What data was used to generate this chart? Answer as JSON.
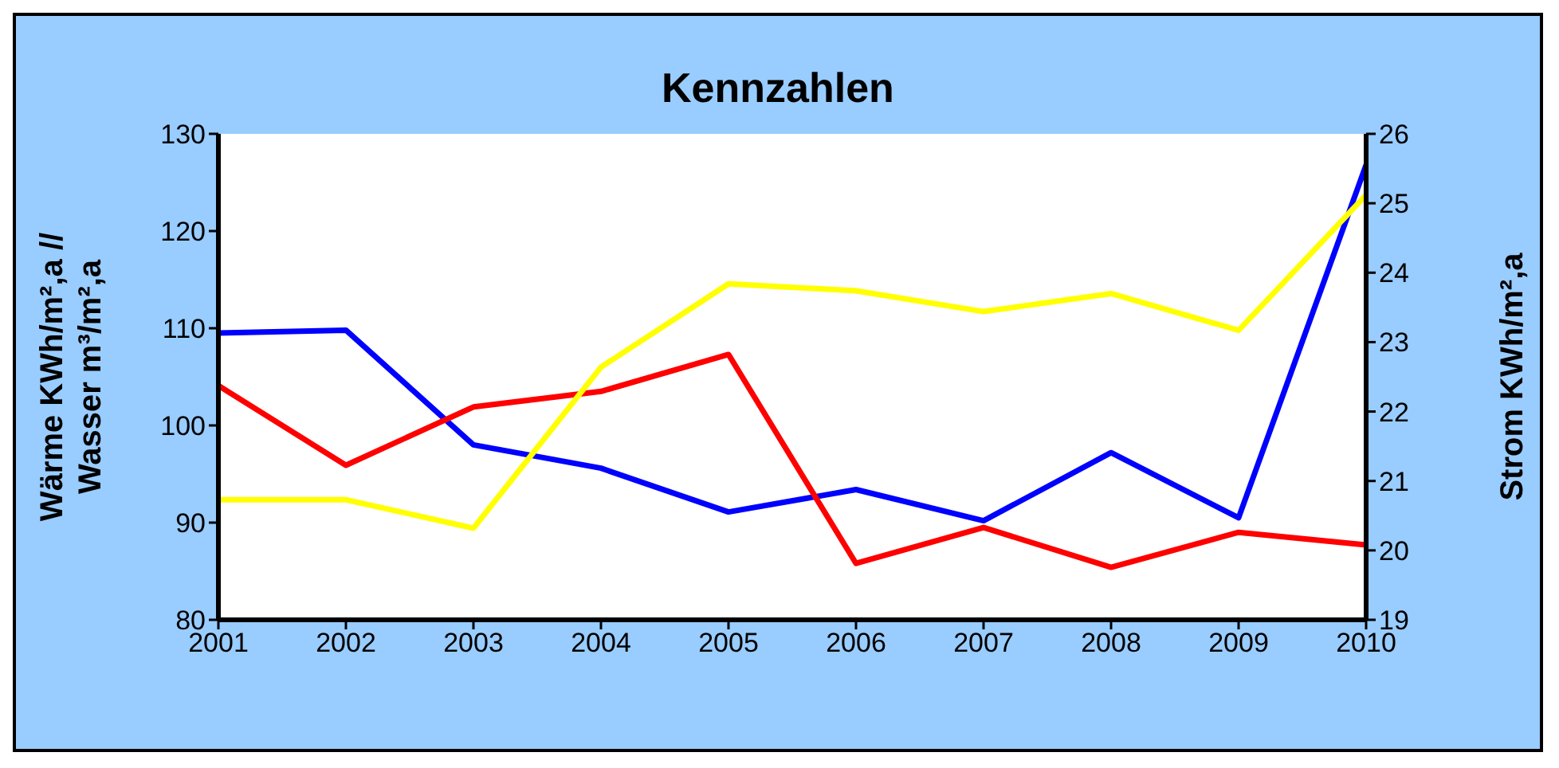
{
  "chart_data": {
    "type": "line",
    "title": "Kennzahlen",
    "ylabel": "Wärme KWh/m²,a //\nWasser m³/m²,a",
    "y2label": "Strom KWh/m²,a",
    "categories": [
      "2001",
      "2002",
      "2003",
      "2004",
      "2005",
      "2006",
      "2007",
      "2008",
      "2009",
      "2010"
    ],
    "series": [
      {
        "color": "#0000ff",
        "values": [
          109.5,
          109.8,
          98.0,
          95.6,
          91.1,
          93.4,
          90.2,
          97.2,
          90.5,
          126.8
        ]
      },
      {
        "color": "#ff0000",
        "values": [
          104.1,
          95.9,
          101.9,
          103.5,
          107.3,
          85.8,
          89.5,
          85.4,
          89.0,
          87.7
        ]
      },
      {
        "color": "#ffff00",
        "axis": "y2",
        "values": [
          20.73,
          20.73,
          20.32,
          22.64,
          23.84,
          23.74,
          23.44,
          23.7,
          23.17,
          25.12
        ]
      }
    ],
    "ylim": [
      80,
      130
    ],
    "yticks": [
      80,
      90,
      100,
      110,
      120,
      130
    ],
    "y2lim": [
      19,
      26
    ],
    "y2ticks": [
      19,
      20,
      21,
      22,
      23,
      24,
      25,
      26
    ],
    "grid": false,
    "legend": false,
    "marker": "none",
    "line_style": "solid"
  }
}
